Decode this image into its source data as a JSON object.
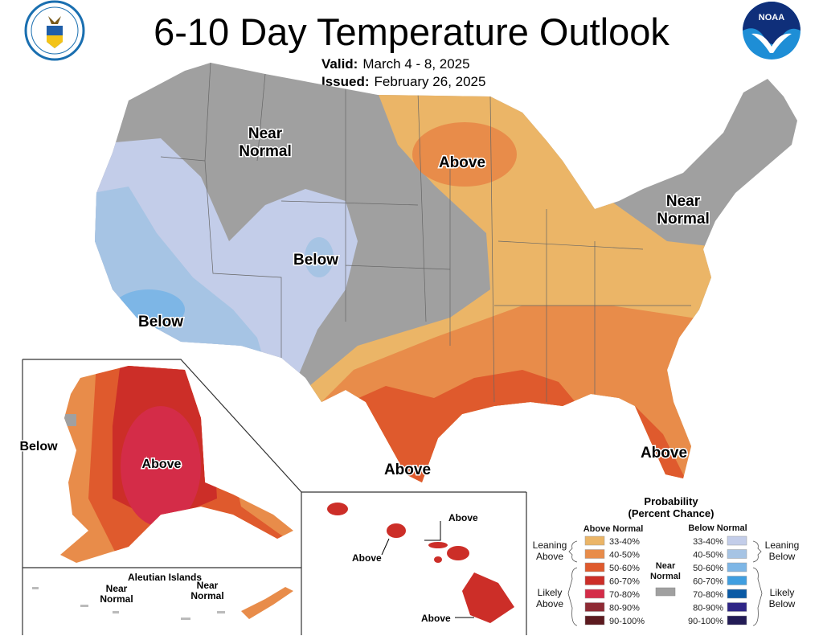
{
  "header": {
    "title": "6-10 Day Temperature Outlook",
    "valid_label": "Valid:",
    "valid_value": "March 4 - 8, 2025",
    "issued_label": "Issued:",
    "issued_value": "February 26, 2025",
    "left_logo": "department-of-commerce-seal",
    "right_logo_text": "NOAA"
  },
  "map_labels": {
    "near_normal_west": [
      "Near",
      "Normal"
    ],
    "near_normal_east": [
      "Near",
      "Normal"
    ],
    "above_midwest": "Above",
    "below_colorado": "Below",
    "below_california": "Below",
    "above_texas": "Above",
    "above_florida": "Above",
    "alaska_above": "Above",
    "alaska_below": "Below",
    "aleutian_title": "Aleutian Islands",
    "aleutian_near_normal_1": [
      "Near",
      "Normal"
    ],
    "aleutian_near_normal_2": [
      "Near",
      "Normal"
    ],
    "hawaii_above_1": "Above",
    "hawaii_above_2": "Above",
    "hawaii_above_3": "Above"
  },
  "legend": {
    "title": [
      "Probability",
      "(Percent Chance)"
    ],
    "above_header": "Above Normal",
    "below_header": "Below Normal",
    "near_label": [
      "Near",
      "Normal"
    ],
    "near_color": "#a0a0a0",
    "leaning_above": [
      "Leaning",
      "Above"
    ],
    "likely_above": [
      "Likely",
      "Above"
    ],
    "leaning_below": [
      "Leaning",
      "Below"
    ],
    "likely_below": [
      "Likely",
      "Below"
    ],
    "above": [
      {
        "range": "33-40%",
        "color": "#ebb567"
      },
      {
        "range": "40-50%",
        "color": "#e88c4a"
      },
      {
        "range": "50-60%",
        "color": "#df5a2d"
      },
      {
        "range": "60-70%",
        "color": "#cc2e28"
      },
      {
        "range": "70-80%",
        "color": "#d42c48"
      },
      {
        "range": "80-90%",
        "color": "#8e2a34"
      },
      {
        "range": "90-100%",
        "color": "#5c1a1f"
      }
    ],
    "below": [
      {
        "range": "33-40%",
        "color": "#c3cde9"
      },
      {
        "range": "40-50%",
        "color": "#a6c4e4"
      },
      {
        "range": "50-60%",
        "color": "#7db6e6"
      },
      {
        "range": "60-70%",
        "color": "#3f9ee0"
      },
      {
        "range": "70-80%",
        "color": "#0a5aa5"
      },
      {
        "range": "80-90%",
        "color": "#2e2586"
      },
      {
        "range": "90-100%",
        "color": "#221b55"
      }
    ]
  }
}
